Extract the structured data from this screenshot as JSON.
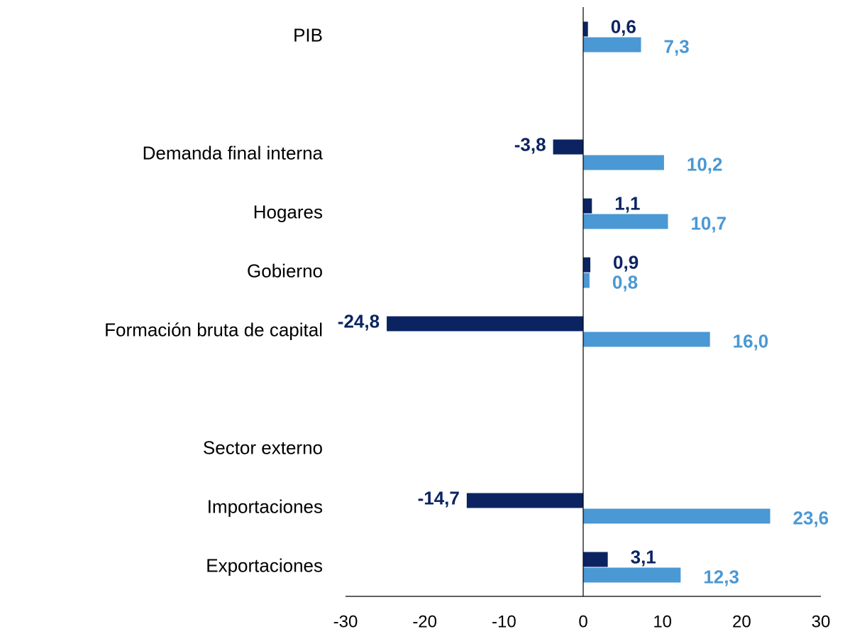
{
  "chart_data": {
    "type": "bar",
    "orientation": "horizontal",
    "categories": [
      "PIB",
      null,
      "Demanda final interna",
      "Hogares",
      "Gobierno",
      "Formación bruta de capital",
      null,
      "Sector externo",
      "Importaciones",
      "Exportaciones"
    ],
    "series": [
      {
        "color": "#0b2461",
        "values": [
          0.6,
          null,
          -3.8,
          1.1,
          0.9,
          -24.8,
          null,
          null,
          -14.7,
          3.1
        ],
        "value_labels": [
          "0,6",
          null,
          "-3,8",
          "1,1",
          "0,9",
          "-24,8",
          null,
          null,
          "-14,7",
          "3,1"
        ]
      },
      {
        "color": "#4a98d4",
        "values": [
          7.3,
          null,
          10.2,
          10.7,
          0.8,
          16.0,
          null,
          null,
          23.6,
          12.3
        ],
        "value_labels": [
          "7,3",
          null,
          "10,2",
          "10,7",
          "0,8",
          "16,0",
          null,
          null,
          "23,6",
          "12,3"
        ]
      }
    ],
    "xlim": [
      -30,
      30
    ],
    "xticks": [
      -30,
      -20,
      -10,
      0,
      10,
      20,
      30
    ]
  }
}
